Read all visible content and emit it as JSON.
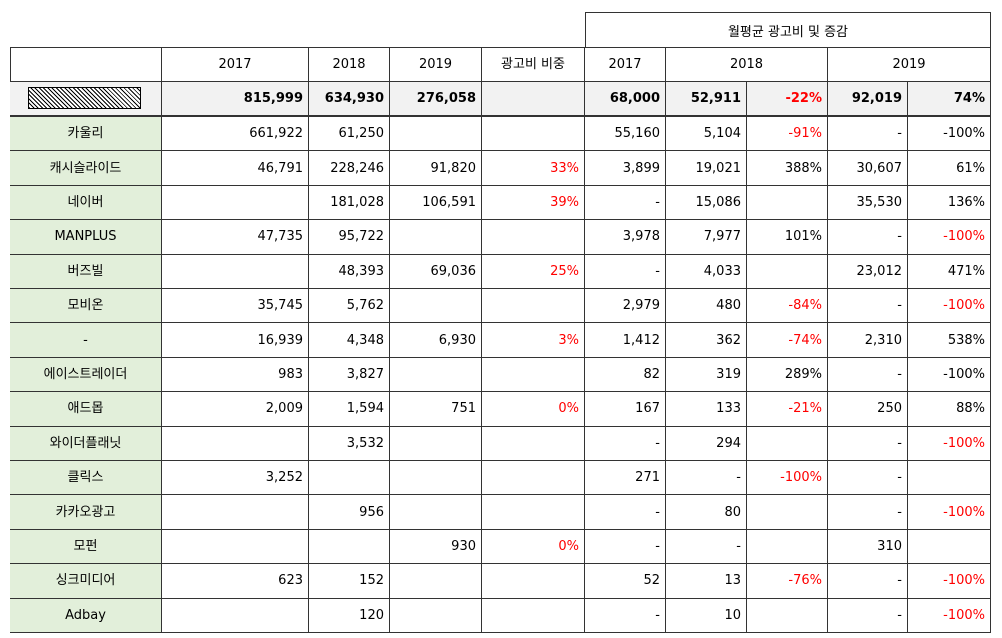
{
  "table": {
    "group_header": "월평균 광고비 및 증감",
    "header": [
      "2017",
      "2018",
      "2019",
      "광고비 비중",
      "2017",
      "2018",
      "2019"
    ],
    "total": {
      "cells": [
        "815,999",
        "634,930",
        "276,058",
        null,
        "68,000",
        "52,911",
        {
          "text": "-22%",
          "color": "#ff0000"
        },
        "92,019",
        "74%"
      ]
    },
    "rows": [
      {
        "label": "카울리",
        "cells": [
          "661,922",
          "61,250",
          null,
          null,
          "55,160",
          "5,104",
          {
            "text": "-91%",
            "color": "#ff0000"
          },
          "-",
          "-100%"
        ]
      },
      {
        "label": "캐시슬라이드",
        "cells": [
          "46,791",
          "228,246",
          "91,820",
          {
            "text": "33%",
            "color": "#ff0000"
          },
          "3,899",
          "19,021",
          "388%",
          "30,607",
          "61%"
        ]
      },
      {
        "label": "네이버",
        "cells": [
          null,
          "181,028",
          "106,591",
          {
            "text": "39%",
            "color": "#ff0000"
          },
          "-",
          "15,086",
          null,
          "35,530",
          "136%"
        ]
      },
      {
        "label": "MANPLUS",
        "cells": [
          "47,735",
          "95,722",
          null,
          null,
          "3,978",
          "7,977",
          "101%",
          "-",
          {
            "text": "-100%",
            "color": "#ff0000"
          }
        ]
      },
      {
        "label": "버즈빌",
        "cells": [
          null,
          "48,393",
          "69,036",
          {
            "text": "25%",
            "color": "#ff0000"
          },
          "-",
          "4,033",
          null,
          "23,012",
          "471%"
        ]
      },
      {
        "label": "모비온",
        "cells": [
          "35,745",
          "5,762",
          null,
          null,
          "2,979",
          "480",
          {
            "text": "-84%",
            "color": "#ff0000"
          },
          "-",
          {
            "text": "-100%",
            "color": "#ff0000"
          }
        ]
      },
      {
        "label": "-",
        "cells": [
          "16,939",
          "4,348",
          "6,930",
          {
            "text": "3%",
            "color": "#ff0000"
          },
          "1,412",
          "362",
          {
            "text": "-74%",
            "color": "#ff0000"
          },
          "2,310",
          "538%"
        ]
      },
      {
        "label": "에이스트레이더",
        "cells": [
          "983",
          "3,827",
          null,
          null,
          "82",
          "319",
          "289%",
          "-",
          "-100%"
        ]
      },
      {
        "label": "애드몹",
        "cells": [
          "2,009",
          "1,594",
          "751",
          {
            "text": "0%",
            "color": "#ff0000"
          },
          "167",
          "133",
          {
            "text": "-21%",
            "color": "#ff0000"
          },
          "250",
          "88%"
        ]
      },
      {
        "label": "와이더플래닛",
        "cells": [
          null,
          "3,532",
          null,
          null,
          "-",
          "294",
          null,
          "-",
          {
            "text": "-100%",
            "color": "#ff0000"
          }
        ]
      },
      {
        "label": "클릭스",
        "cells": [
          "3,252",
          null,
          null,
          null,
          "271",
          "-",
          {
            "text": "-100%",
            "color": "#ff0000"
          },
          "-",
          null
        ]
      },
      {
        "label": "카카오광고",
        "cells": [
          null,
          "956",
          null,
          null,
          "-",
          "80",
          null,
          "-",
          {
            "text": "-100%",
            "color": "#ff0000"
          }
        ]
      },
      {
        "label": "모펀",
        "cells": [
          null,
          null,
          "930",
          {
            "text": "0%",
            "color": "#ff0000"
          },
          "-",
          "-",
          null,
          "310",
          null
        ]
      },
      {
        "label": "싱크미디어",
        "cells": [
          "623",
          "152",
          null,
          null,
          "52",
          "13",
          {
            "text": "-76%",
            "color": "#ff0000"
          },
          "-",
          {
            "text": "-100%",
            "color": "#ff0000"
          }
        ]
      },
      {
        "label": "Adbay",
        "cells": [
          null,
          "120",
          null,
          null,
          "-",
          "10",
          null,
          "-",
          {
            "text": "-100%",
            "color": "#ff0000"
          }
        ]
      }
    ]
  }
}
